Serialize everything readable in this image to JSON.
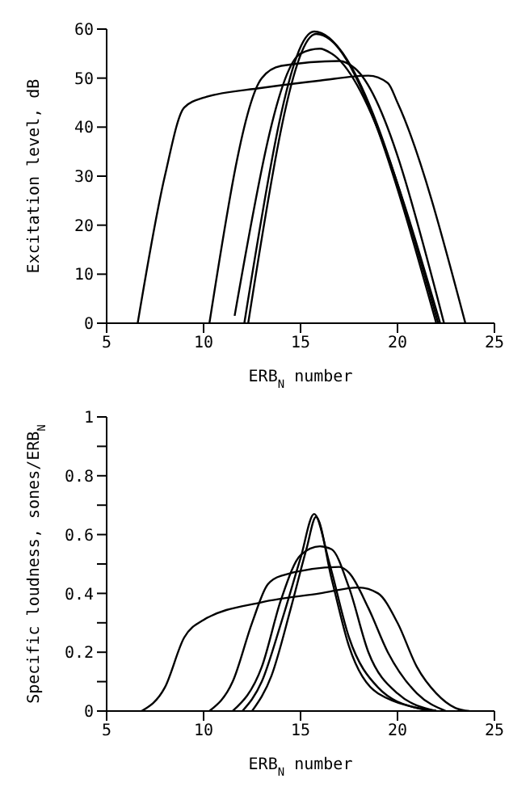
{
  "chart_data": [
    {
      "type": "line",
      "xlabel": "ERB$_{N}$ number",
      "ylabel": "Excitation level, dB",
      "xlim": [
        5,
        25
      ],
      "xticks": [
        5,
        10,
        15,
        20,
        25
      ],
      "ylim": [
        0,
        60
      ],
      "yticks": [
        0,
        10,
        20,
        30,
        40,
        50,
        60
      ],
      "grid": false,
      "legend": false,
      "marker": "none",
      "line_style": "solid",
      "series": [
        {
          "color": "#000000",
          "x": [
            6.6,
            8,
            9,
            10,
            13,
            16,
            18.5,
            19.5,
            20,
            23.5
          ],
          "values": [
            0,
            30,
            44,
            46,
            48,
            49.5,
            50.5,
            49,
            45,
            0
          ]
        },
        {
          "color": "#000000",
          "x": [
            10.3,
            13,
            14,
            17,
            17.8,
            22.4
          ],
          "values": [
            0,
            50,
            52.5,
            53.5,
            52,
            0
          ]
        },
        {
          "color": "#000000",
          "x": [
            11.6,
            15,
            16,
            16.6,
            22.2
          ],
          "values": [
            1.5,
            55,
            56,
            55,
            0
          ]
        },
        {
          "color": "#000000",
          "x": [
            12.1,
            15.7,
            22
          ],
          "values": [
            0,
            59.5,
            0
          ]
        },
        {
          "color": "#000000",
          "x": [
            12.3,
            15.8,
            22.1
          ],
          "values": [
            0,
            59,
            0
          ]
        }
      ]
    },
    {
      "type": "line",
      "xlabel": "ERB$_{N}$ number",
      "ylabel": "Specific loudness, sones/ERB$_{N}$",
      "xlim": [
        5,
        25
      ],
      "xticks": [
        5,
        10,
        15,
        20,
        25
      ],
      "ylim": [
        0,
        1
      ],
      "yticks": [
        0,
        {
          "value": 0.1,
          "label": null
        },
        0.2,
        {
          "value": 0.3,
          "label": null
        },
        0.4,
        {
          "value": 0.5,
          "label": null
        },
        0.6,
        {
          "value": 0.7,
          "label": null
        },
        0.8,
        {
          "value": 0.9,
          "label": null
        },
        1.0
      ],
      "grid": false,
      "legend": false,
      "marker": "none",
      "line_style": "solid",
      "series": [
        {
          "color": "#000000",
          "x": [
            6.8,
            8,
            9,
            10,
            13,
            16,
            18,
            19,
            20,
            21,
            22,
            23,
            23.7
          ],
          "values": [
            0,
            0.08,
            0.25,
            0.31,
            0.37,
            0.4,
            0.42,
            0.4,
            0.3,
            0.15,
            0.06,
            0.01,
            0
          ]
        },
        {
          "color": "#000000",
          "x": [
            10.3,
            11.5,
            12.5,
            13.3,
            14,
            17,
            17.5,
            18.5,
            19.5,
            21,
            22.5
          ],
          "values": [
            0,
            0.1,
            0.3,
            0.43,
            0.46,
            0.49,
            0.47,
            0.35,
            0.2,
            0.06,
            0
          ]
        },
        {
          "color": "#000000",
          "x": [
            11.5,
            13,
            14,
            15,
            16,
            16.6,
            17.5,
            18.5,
            20,
            22
          ],
          "values": [
            0,
            0.15,
            0.38,
            0.53,
            0.56,
            0.55,
            0.42,
            0.2,
            0.06,
            0
          ]
        },
        {
          "color": "#000000",
          "x": [
            12,
            13,
            14,
            15,
            15.7,
            16.5,
            17.5,
            19,
            21,
            22
          ],
          "values": [
            0,
            0.1,
            0.3,
            0.52,
            0.67,
            0.5,
            0.25,
            0.08,
            0.01,
            0
          ]
        },
        {
          "color": "#000000",
          "x": [
            12.5,
            13.5,
            14.5,
            15.3,
            15.8,
            16.6,
            17.5,
            19,
            22
          ],
          "values": [
            0,
            0.12,
            0.35,
            0.55,
            0.66,
            0.45,
            0.22,
            0.06,
            0
          ]
        }
      ]
    }
  ]
}
